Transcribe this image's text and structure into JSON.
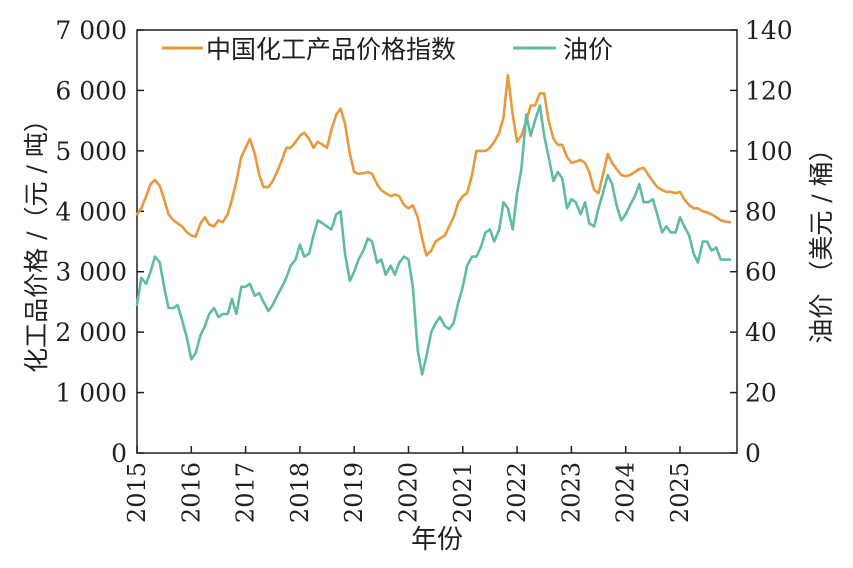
{
  "chart_data": {
    "type": "line",
    "xlabel": "年份",
    "ylabel_left": "化工品价格 /（元 / 吨）",
    "ylabel_right": "油价 （美元 / 桶）",
    "x_ticks": [
      "2015",
      "2016",
      "2017",
      "2018",
      "2019",
      "2020",
      "2021",
      "2022",
      "2023",
      "2024",
      "2025"
    ],
    "xlim": [
      2015,
      2026.05
    ],
    "ylim_left": [
      0,
      7000
    ],
    "ylim_right": [
      0,
      140
    ],
    "y_ticks_left": [
      "0",
      "1 000",
      "2 000",
      "3 000",
      "4 000",
      "5 000",
      "6 000",
      "7 000"
    ],
    "y_ticks_right": [
      "0",
      "20",
      "40",
      "60",
      "80",
      "100",
      "120",
      "140"
    ],
    "series": [
      {
        "name": "中国化工产品价格指数",
        "axis": "left",
        "color": "#e8983d",
        "points": [
          [
            2015.0,
            3950
          ],
          [
            2015.08,
            4050
          ],
          [
            2015.17,
            4250
          ],
          [
            2015.25,
            4450
          ],
          [
            2015.33,
            4520
          ],
          [
            2015.42,
            4420
          ],
          [
            2015.5,
            4200
          ],
          [
            2015.58,
            3950
          ],
          [
            2015.67,
            3850
          ],
          [
            2015.75,
            3800
          ],
          [
            2015.83,
            3750
          ],
          [
            2015.92,
            3650
          ],
          [
            2016.0,
            3600
          ],
          [
            2016.08,
            3580
          ],
          [
            2016.17,
            3800
          ],
          [
            2016.25,
            3900
          ],
          [
            2016.33,
            3780
          ],
          [
            2016.42,
            3750
          ],
          [
            2016.5,
            3850
          ],
          [
            2016.58,
            3820
          ],
          [
            2016.67,
            3950
          ],
          [
            2016.75,
            4200
          ],
          [
            2016.83,
            4500
          ],
          [
            2016.92,
            4900
          ],
          [
            2017.0,
            5050
          ],
          [
            2017.08,
            5200
          ],
          [
            2017.17,
            4950
          ],
          [
            2017.25,
            4600
          ],
          [
            2017.33,
            4400
          ],
          [
            2017.42,
            4400
          ],
          [
            2017.5,
            4500
          ],
          [
            2017.58,
            4650
          ],
          [
            2017.67,
            4850
          ],
          [
            2017.75,
            5050
          ],
          [
            2017.83,
            5050
          ],
          [
            2017.92,
            5150
          ],
          [
            2018.0,
            5250
          ],
          [
            2018.08,
            5300
          ],
          [
            2018.17,
            5200
          ],
          [
            2018.25,
            5050
          ],
          [
            2018.33,
            5150
          ],
          [
            2018.42,
            5100
          ],
          [
            2018.5,
            5050
          ],
          [
            2018.58,
            5350
          ],
          [
            2018.67,
            5600
          ],
          [
            2018.75,
            5700
          ],
          [
            2018.83,
            5450
          ],
          [
            2018.92,
            4950
          ],
          [
            2019.0,
            4650
          ],
          [
            2019.08,
            4620
          ],
          [
            2019.17,
            4630
          ],
          [
            2019.25,
            4650
          ],
          [
            2019.33,
            4620
          ],
          [
            2019.42,
            4450
          ],
          [
            2019.5,
            4350
          ],
          [
            2019.58,
            4300
          ],
          [
            2019.67,
            4250
          ],
          [
            2019.75,
            4280
          ],
          [
            2019.83,
            4250
          ],
          [
            2019.92,
            4100
          ],
          [
            2020.0,
            4050
          ],
          [
            2020.08,
            4100
          ],
          [
            2020.17,
            3900
          ],
          [
            2020.25,
            3550
          ],
          [
            2020.33,
            3270
          ],
          [
            2020.42,
            3350
          ],
          [
            2020.5,
            3500
          ],
          [
            2020.58,
            3550
          ],
          [
            2020.67,
            3600
          ],
          [
            2020.75,
            3750
          ],
          [
            2020.83,
            3900
          ],
          [
            2020.92,
            4150
          ],
          [
            2021.0,
            4250
          ],
          [
            2021.08,
            4300
          ],
          [
            2021.17,
            4600
          ],
          [
            2021.25,
            5000
          ],
          [
            2021.33,
            5000
          ],
          [
            2021.42,
            5000
          ],
          [
            2021.5,
            5050
          ],
          [
            2021.58,
            5150
          ],
          [
            2021.67,
            5300
          ],
          [
            2021.75,
            5550
          ],
          [
            2021.83,
            6250
          ],
          [
            2021.92,
            5600
          ],
          [
            2022.0,
            5150
          ],
          [
            2022.08,
            5250
          ],
          [
            2022.17,
            5500
          ],
          [
            2022.25,
            5750
          ],
          [
            2022.33,
            5750
          ],
          [
            2022.42,
            5950
          ],
          [
            2022.5,
            5950
          ],
          [
            2022.58,
            5500
          ],
          [
            2022.67,
            5200
          ],
          [
            2022.75,
            5100
          ],
          [
            2022.83,
            5100
          ],
          [
            2022.92,
            4900
          ],
          [
            2023.0,
            4800
          ],
          [
            2023.08,
            4820
          ],
          [
            2023.17,
            4850
          ],
          [
            2023.25,
            4800
          ],
          [
            2023.33,
            4650
          ],
          [
            2023.42,
            4350
          ],
          [
            2023.5,
            4300
          ],
          [
            2023.58,
            4600
          ],
          [
            2023.67,
            4950
          ],
          [
            2023.75,
            4800
          ],
          [
            2023.83,
            4700
          ],
          [
            2023.92,
            4600
          ],
          [
            2024.0,
            4580
          ],
          [
            2024.08,
            4600
          ],
          [
            2024.17,
            4650
          ],
          [
            2024.25,
            4700
          ],
          [
            2024.33,
            4720
          ],
          [
            2024.42,
            4600
          ],
          [
            2024.5,
            4500
          ],
          [
            2024.58,
            4400
          ],
          [
            2024.67,
            4350
          ],
          [
            2024.75,
            4320
          ],
          [
            2024.83,
            4320
          ],
          [
            2024.92,
            4300
          ],
          [
            2025.0,
            4320
          ],
          [
            2025.08,
            4200
          ],
          [
            2025.17,
            4100
          ],
          [
            2025.25,
            4050
          ],
          [
            2025.33,
            4050
          ],
          [
            2025.42,
            4000
          ],
          [
            2025.5,
            3980
          ],
          [
            2025.58,
            3950
          ],
          [
            2025.67,
            3900
          ],
          [
            2025.75,
            3850
          ],
          [
            2025.83,
            3830
          ],
          [
            2025.92,
            3820
          ]
        ]
      },
      {
        "name": "油价",
        "axis": "right",
        "color": "#5fbba5",
        "points": [
          [
            2015.0,
            49
          ],
          [
            2015.08,
            58
          ],
          [
            2015.17,
            56
          ],
          [
            2015.25,
            60
          ],
          [
            2015.33,
            65
          ],
          [
            2015.42,
            63
          ],
          [
            2015.5,
            55
          ],
          [
            2015.58,
            48
          ],
          [
            2015.67,
            48
          ],
          [
            2015.75,
            49
          ],
          [
            2015.83,
            44
          ],
          [
            2015.92,
            38
          ],
          [
            2016.0,
            31
          ],
          [
            2016.08,
            33
          ],
          [
            2016.17,
            39
          ],
          [
            2016.25,
            42
          ],
          [
            2016.33,
            46
          ],
          [
            2016.42,
            48
          ],
          [
            2016.5,
            45
          ],
          [
            2016.58,
            46
          ],
          [
            2016.67,
            46
          ],
          [
            2016.75,
            51
          ],
          [
            2016.83,
            46
          ],
          [
            2016.92,
            55
          ],
          [
            2017.0,
            55
          ],
          [
            2017.08,
            56
          ],
          [
            2017.17,
            52
          ],
          [
            2017.25,
            53
          ],
          [
            2017.33,
            50
          ],
          [
            2017.42,
            47
          ],
          [
            2017.5,
            49
          ],
          [
            2017.58,
            52
          ],
          [
            2017.67,
            55
          ],
          [
            2017.75,
            58
          ],
          [
            2017.83,
            62
          ],
          [
            2017.92,
            64
          ],
          [
            2018.0,
            69
          ],
          [
            2018.08,
            65
          ],
          [
            2018.17,
            66
          ],
          [
            2018.25,
            72
          ],
          [
            2018.33,
            77
          ],
          [
            2018.42,
            76
          ],
          [
            2018.5,
            75
          ],
          [
            2018.58,
            74
          ],
          [
            2018.67,
            79
          ],
          [
            2018.75,
            80
          ],
          [
            2018.83,
            66
          ],
          [
            2018.92,
            57
          ],
          [
            2019.0,
            60
          ],
          [
            2019.08,
            64
          ],
          [
            2019.17,
            67
          ],
          [
            2019.25,
            71
          ],
          [
            2019.33,
            70
          ],
          [
            2019.42,
            63
          ],
          [
            2019.5,
            64
          ],
          [
            2019.58,
            59
          ],
          [
            2019.67,
            62
          ],
          [
            2019.75,
            59
          ],
          [
            2019.83,
            63
          ],
          [
            2019.92,
            65
          ],
          [
            2020.0,
            64
          ],
          [
            2020.08,
            55
          ],
          [
            2020.17,
            34
          ],
          [
            2020.25,
            26
          ],
          [
            2020.33,
            32
          ],
          [
            2020.42,
            40
          ],
          [
            2020.5,
            43
          ],
          [
            2020.58,
            45
          ],
          [
            2020.67,
            42
          ],
          [
            2020.75,
            41
          ],
          [
            2020.83,
            43
          ],
          [
            2020.92,
            50
          ],
          [
            2021.0,
            55
          ],
          [
            2021.08,
            62
          ],
          [
            2021.17,
            65
          ],
          [
            2021.25,
            65
          ],
          [
            2021.33,
            68
          ],
          [
            2021.42,
            73
          ],
          [
            2021.5,
            74
          ],
          [
            2021.58,
            70
          ],
          [
            2021.67,
            74
          ],
          [
            2021.75,
            83
          ],
          [
            2021.83,
            81
          ],
          [
            2021.92,
            74
          ],
          [
            2022.0,
            86
          ],
          [
            2022.08,
            94
          ],
          [
            2022.17,
            112
          ],
          [
            2022.25,
            105
          ],
          [
            2022.33,
            110
          ],
          [
            2022.42,
            115
          ],
          [
            2022.5,
            105
          ],
          [
            2022.58,
            98
          ],
          [
            2022.67,
            90
          ],
          [
            2022.75,
            93
          ],
          [
            2022.83,
            91
          ],
          [
            2022.92,
            81
          ],
          [
            2023.0,
            84
          ],
          [
            2023.08,
            83
          ],
          [
            2023.17,
            79
          ],
          [
            2023.25,
            83
          ],
          [
            2023.33,
            76
          ],
          [
            2023.42,
            75
          ],
          [
            2023.5,
            81
          ],
          [
            2023.58,
            86
          ],
          [
            2023.67,
            92
          ],
          [
            2023.75,
            89
          ],
          [
            2023.83,
            82
          ],
          [
            2023.92,
            77
          ],
          [
            2024.0,
            79
          ],
          [
            2024.08,
            82
          ],
          [
            2024.17,
            85
          ],
          [
            2024.25,
            89
          ],
          [
            2024.33,
            83
          ],
          [
            2024.42,
            83
          ],
          [
            2024.5,
            84
          ],
          [
            2024.58,
            79
          ],
          [
            2024.67,
            73
          ],
          [
            2024.75,
            75
          ],
          [
            2024.83,
            73
          ],
          [
            2024.92,
            73
          ],
          [
            2025.0,
            78
          ],
          [
            2025.08,
            75
          ],
          [
            2025.17,
            72
          ],
          [
            2025.25,
            66
          ],
          [
            2025.33,
            63
          ],
          [
            2025.42,
            70
          ],
          [
            2025.5,
            70
          ],
          [
            2025.58,
            67
          ],
          [
            2025.67,
            68
          ],
          [
            2025.75,
            64
          ],
          [
            2025.83,
            64
          ],
          [
            2025.92,
            64
          ]
        ]
      }
    ],
    "legend": {
      "position": "top",
      "labels": [
        "中国化工产品价格指数",
        "油价"
      ]
    }
  }
}
